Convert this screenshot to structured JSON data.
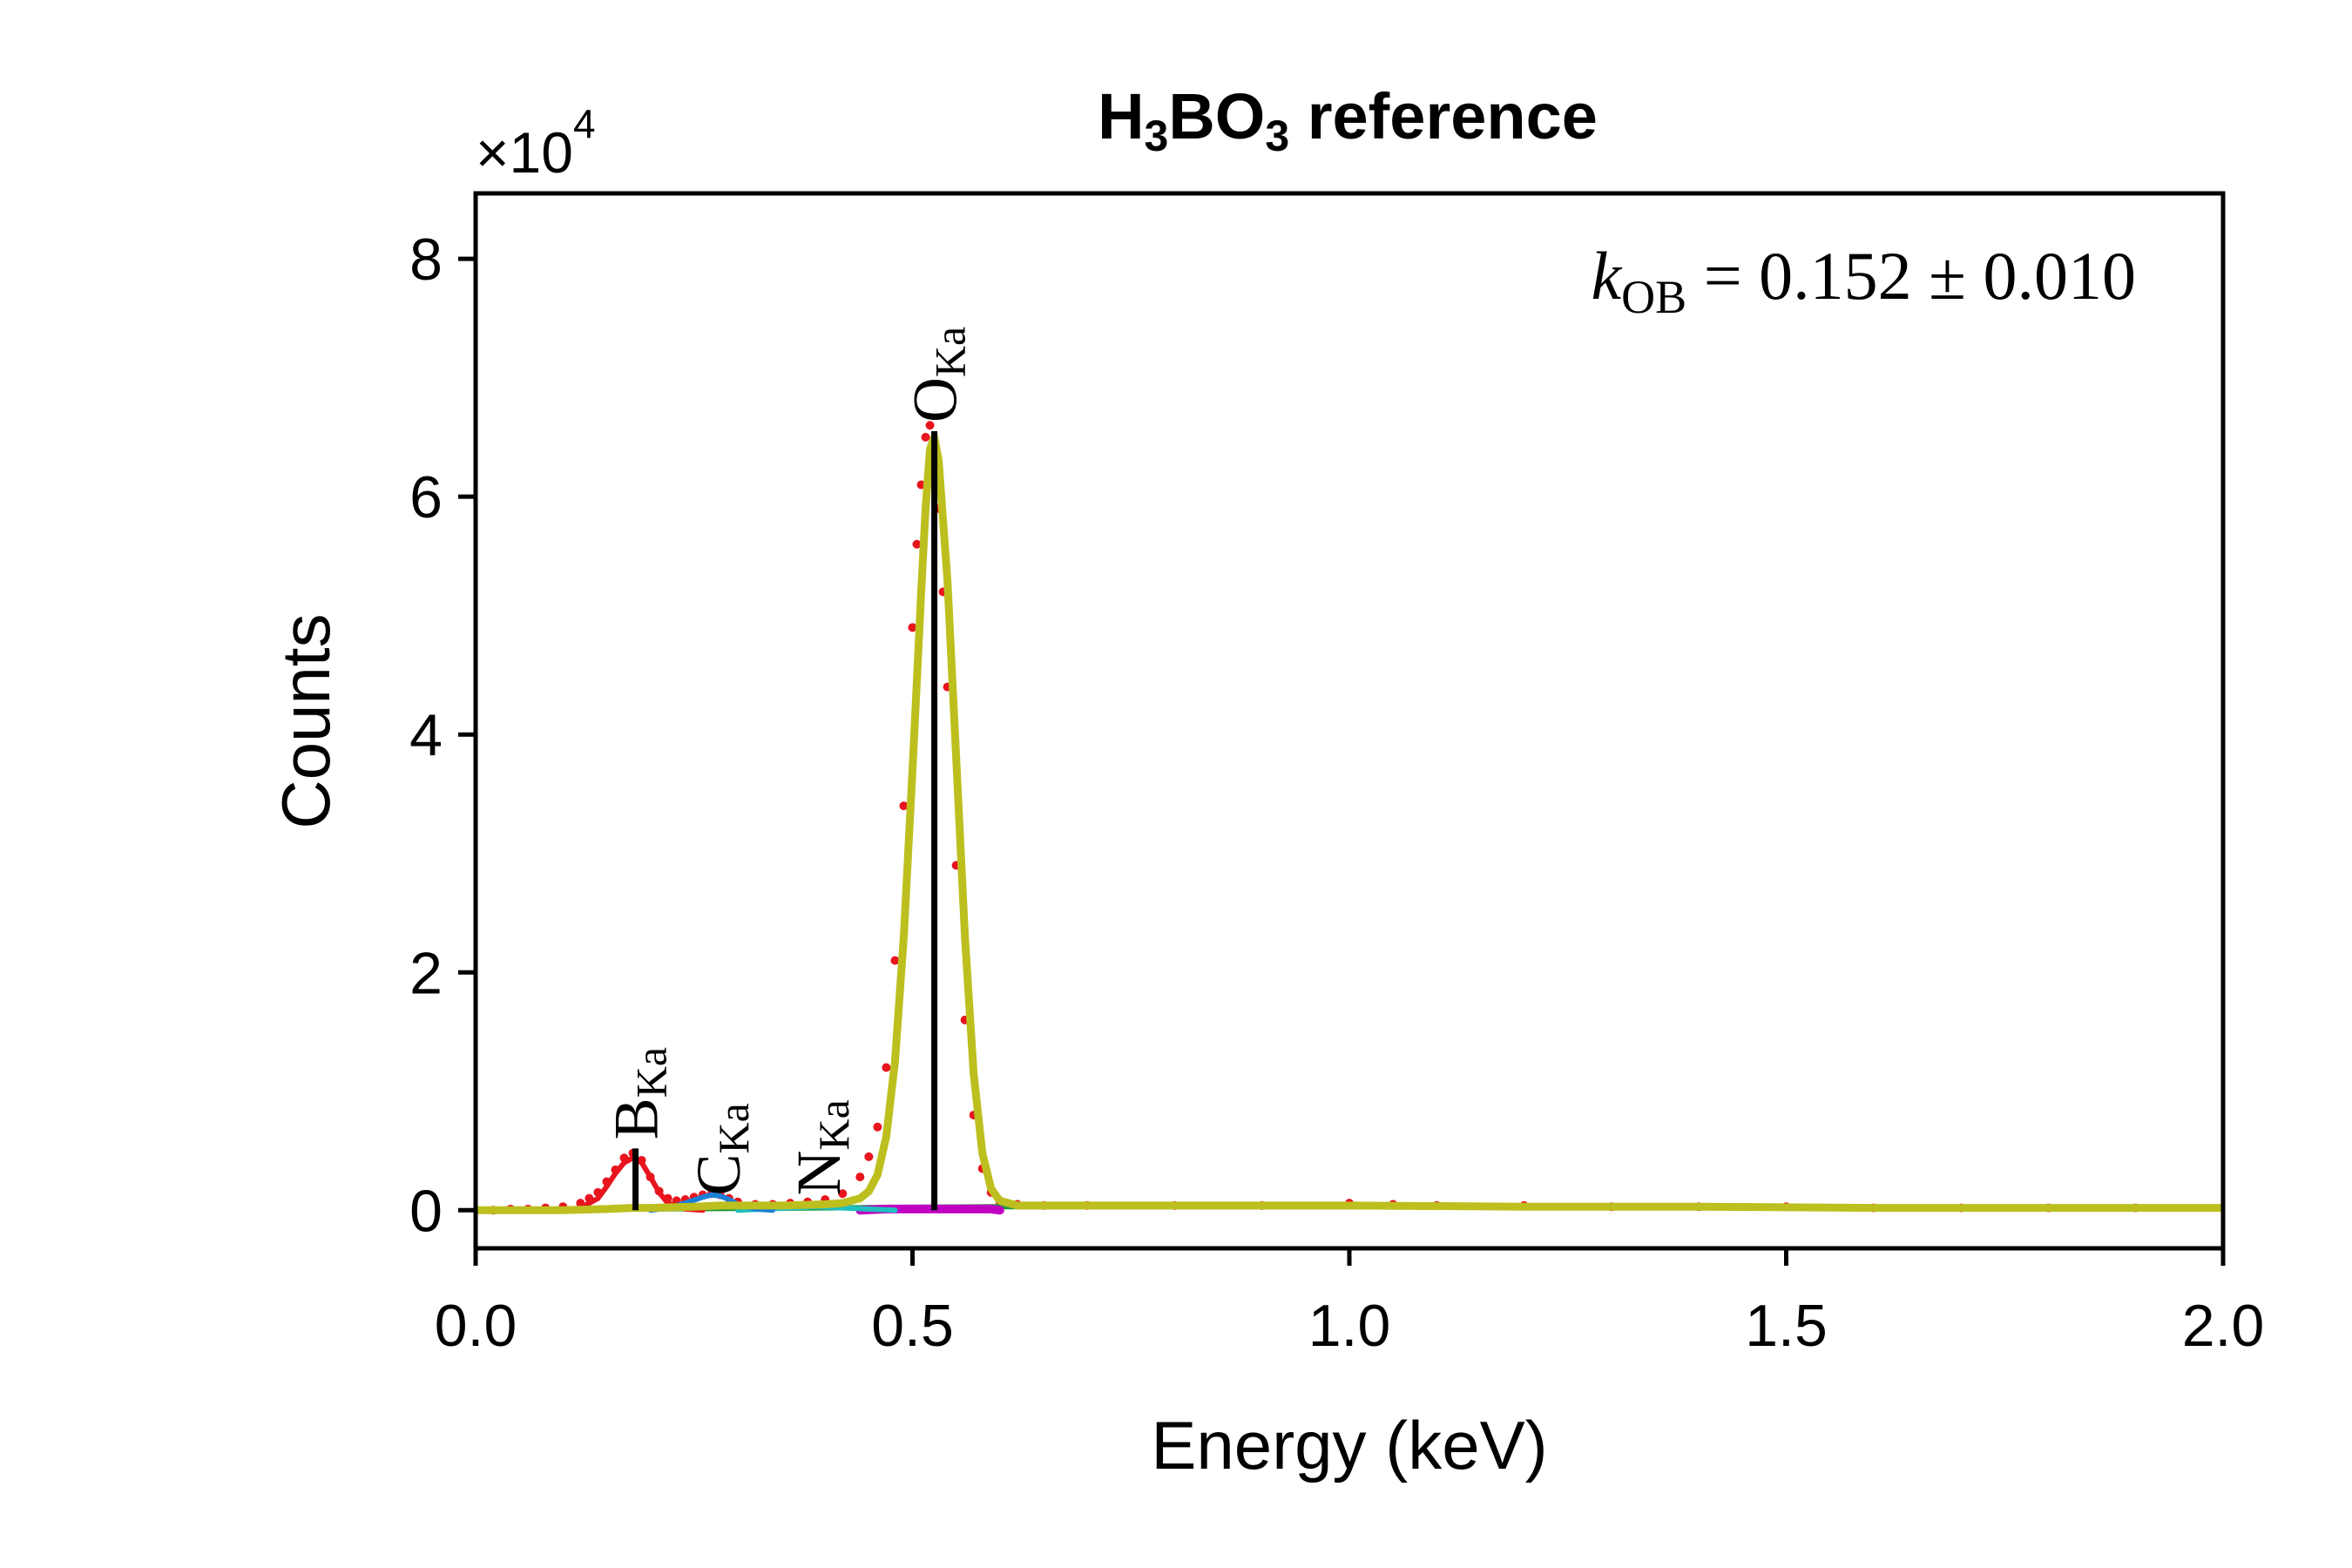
{
  "chart_data": {
    "type": "line",
    "title": "H₃BO₃ reference",
    "title_parts": {
      "base": "H",
      "sub1": "3",
      "mid": "BO",
      "sub2": "3",
      "rest": " reference"
    },
    "xlabel": "Energy (keV)",
    "ylabel": "Counts",
    "y_multiplier": "×10",
    "y_multiplier_exponent": "4",
    "xlim": [
      0.0,
      2.0
    ],
    "ylim": [
      -0.32,
      8.55
    ],
    "y_scale": 10000,
    "x_ticks": [
      0.0,
      0.5,
      1.0,
      1.5,
      2.0
    ],
    "x_tick_labels": [
      "0.0",
      "0.5",
      "1.0",
      "1.5",
      "2.0"
    ],
    "y_ticks": [
      0,
      2,
      4,
      6,
      8
    ],
    "y_tick_labels": [
      "0",
      "2",
      "4",
      "6",
      "8"
    ],
    "grid": false,
    "annotation": {
      "k": "k",
      "sub": "OB",
      "text": " = 0.152 ± 0.010"
    },
    "peak_markers": [
      {
        "label": "B",
        "sub": "Ka",
        "energy": 0.183,
        "height": 0.52,
        "color": "#000000"
      },
      {
        "label": "C",
        "sub": "Ka",
        "energy": 0.277,
        "height": 0.0,
        "color": "#000000"
      },
      {
        "label": "N",
        "sub": "Ka",
        "energy": 0.392,
        "height": 0.0,
        "color": "#000000"
      },
      {
        "label": "O",
        "sub": "Ka",
        "energy": 0.525,
        "height": 6.55,
        "color": "#000000"
      }
    ],
    "series": [
      {
        "role": "measured",
        "style": "dots",
        "color": "#e8141e",
        "x": [
          0.0,
          0.02,
          0.04,
          0.06,
          0.08,
          0.1,
          0.12,
          0.13,
          0.14,
          0.15,
          0.16,
          0.17,
          0.18,
          0.19,
          0.2,
          0.21,
          0.22,
          0.23,
          0.24,
          0.25,
          0.26,
          0.27,
          0.28,
          0.29,
          0.3,
          0.32,
          0.34,
          0.36,
          0.38,
          0.4,
          0.42,
          0.44,
          0.45,
          0.46,
          0.47,
          0.48,
          0.49,
          0.5,
          0.505,
          0.51,
          0.515,
          0.52,
          0.525,
          0.53,
          0.535,
          0.54,
          0.55,
          0.56,
          0.57,
          0.58,
          0.59,
          0.6,
          0.62,
          0.65,
          0.7,
          0.8,
          0.9,
          1.0,
          1.05,
          1.1,
          1.2,
          1.3,
          1.4,
          1.5,
          1.6,
          1.7,
          1.8,
          1.9,
          2.0
        ],
        "y": [
          0.0,
          0.0,
          0.01,
          0.01,
          0.02,
          0.03,
          0.06,
          0.1,
          0.15,
          0.24,
          0.34,
          0.44,
          0.48,
          0.42,
          0.28,
          0.16,
          0.1,
          0.08,
          0.09,
          0.11,
          0.13,
          0.14,
          0.13,
          0.1,
          0.07,
          0.05,
          0.05,
          0.06,
          0.07,
          0.09,
          0.14,
          0.28,
          0.45,
          0.7,
          1.2,
          2.1,
          3.4,
          4.9,
          5.6,
          6.1,
          6.5,
          6.6,
          6.3,
          5.9,
          5.2,
          4.4,
          2.9,
          1.6,
          0.8,
          0.35,
          0.15,
          0.07,
          0.05,
          0.04,
          0.04,
          0.04,
          0.04,
          0.06,
          0.05,
          0.04,
          0.04,
          0.03,
          0.03,
          0.03,
          0.02,
          0.02,
          0.02,
          0.02,
          0.02
        ]
      },
      {
        "role": "B component",
        "style": "line",
        "color": "#e8141e",
        "x": [
          0.1,
          0.12,
          0.14,
          0.15,
          0.16,
          0.17,
          0.18,
          0.19,
          0.2,
          0.21,
          0.22,
          0.24,
          0.26
        ],
        "y": [
          0.0,
          0.02,
          0.1,
          0.2,
          0.31,
          0.4,
          0.44,
          0.4,
          0.28,
          0.15,
          0.06,
          0.01,
          0.0
        ]
      },
      {
        "role": "C component",
        "style": "line",
        "color": "#1a7fd6",
        "x": [
          0.2,
          0.22,
          0.24,
          0.26,
          0.27,
          0.28,
          0.29,
          0.3,
          0.32,
          0.34
        ],
        "y": [
          0.0,
          0.02,
          0.06,
          0.11,
          0.13,
          0.12,
          0.09,
          0.05,
          0.01,
          0.0
        ]
      },
      {
        "role": "N component",
        "style": "line",
        "color": "#1fbfbf",
        "x": [
          0.3,
          0.33,
          0.36,
          0.39,
          0.42,
          0.45,
          0.48
        ],
        "y": [
          0.0,
          0.01,
          0.02,
          0.03,
          0.02,
          0.01,
          0.0
        ]
      },
      {
        "role": "background",
        "style": "line",
        "color": "#1a9a3a",
        "x": [
          0.0,
          0.2,
          0.4,
          0.6,
          0.8,
          1.0,
          1.2,
          1.4,
          1.6,
          1.8,
          2.0
        ],
        "y": [
          0.0,
          0.01,
          0.02,
          0.03,
          0.03,
          0.03,
          0.03,
          0.02,
          0.02,
          0.02,
          0.02
        ]
      },
      {
        "role": "O residual band",
        "style": "line",
        "color": "#c000c0",
        "x": [
          0.44,
          0.47,
          0.5,
          0.53,
          0.56,
          0.59,
          0.6
        ],
        "y": [
          0.0,
          0.01,
          0.01,
          0.01,
          0.01,
          0.01,
          0.0
        ]
      },
      {
        "role": "fit",
        "style": "line",
        "color": "#bdbf1e",
        "x": [
          0.0,
          0.05,
          0.1,
          0.15,
          0.18,
          0.2,
          0.25,
          0.28,
          0.3,
          0.35,
          0.4,
          0.42,
          0.44,
          0.45,
          0.46,
          0.47,
          0.48,
          0.49,
          0.5,
          0.51,
          0.515,
          0.52,
          0.525,
          0.53,
          0.54,
          0.55,
          0.56,
          0.57,
          0.58,
          0.59,
          0.6,
          0.62,
          0.65,
          0.7,
          0.8,
          1.0,
          1.2,
          1.4,
          1.6,
          1.8,
          2.0
        ],
        "y": [
          0.0,
          0.0,
          0.0,
          0.01,
          0.02,
          0.02,
          0.03,
          0.04,
          0.04,
          0.04,
          0.05,
          0.06,
          0.1,
          0.16,
          0.3,
          0.62,
          1.25,
          2.3,
          3.7,
          5.2,
          5.9,
          6.4,
          6.5,
          6.3,
          5.3,
          3.8,
          2.3,
          1.15,
          0.48,
          0.18,
          0.08,
          0.04,
          0.04,
          0.04,
          0.04,
          0.04,
          0.03,
          0.03,
          0.02,
          0.02,
          0.02
        ]
      }
    ]
  }
}
